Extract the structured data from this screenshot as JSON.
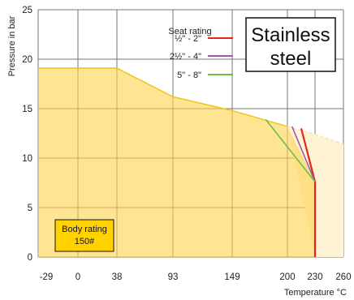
{
  "chart_data": {
    "type": "area",
    "xlabel": "Temperature °C",
    "ylabel": "Pressure in bar",
    "x_ticks": [
      -29,
      0,
      38,
      93,
      149,
      200,
      230,
      260
    ],
    "x_tick_labels": [
      "-29",
      "0",
      "38",
      "93",
      "149",
      "200",
      "230",
      "260"
    ],
    "y_ticks": [
      0,
      5,
      10,
      15,
      20,
      25
    ],
    "y_tick_labels": [
      "0",
      "5",
      "10",
      "15",
      "20",
      "25"
    ],
    "xlim": [
      -29,
      260
    ],
    "ylim": [
      0,
      25
    ],
    "grid": true,
    "body_rating": {
      "label_line1": "Body rating",
      "label_line2": "150#",
      "color": "#FFD24D",
      "points": [
        [
          -29,
          19.1
        ],
        [
          38,
          19.1
        ],
        [
          93,
          16.2
        ],
        [
          149,
          14.8
        ],
        [
          200,
          13.2
        ],
        [
          230,
          7.6
        ],
        [
          230,
          0
        ]
      ]
    },
    "body_rating_extension": {
      "color": "#FFF3D6",
      "points": [
        [
          200,
          13.2
        ],
        [
          230,
          12.4
        ],
        [
          260,
          11.4
        ],
        [
          260,
          0
        ],
        [
          230,
          0
        ]
      ]
    },
    "material": "Stainless steel",
    "material_line1": "Stainless",
    "material_line2": "steel",
    "legend_title": "Seat rating",
    "seat_ratings": [
      {
        "name": "½\" - 2\"",
        "color": "#E1261C",
        "points": [
          [
            215,
            13.0
          ],
          [
            230,
            7.6
          ],
          [
            230,
            0
          ]
        ]
      },
      {
        "name": "2½\" - 4\"",
        "color": "#A05AA8",
        "points": [
          [
            205,
            13.2
          ],
          [
            230,
            7.6
          ]
        ]
      },
      {
        "name": "5\" - 8\"",
        "color": "#6CC04A",
        "points": [
          [
            180,
            13.9
          ],
          [
            230,
            7.6
          ]
        ]
      }
    ],
    "line_color": "#F0C419"
  }
}
